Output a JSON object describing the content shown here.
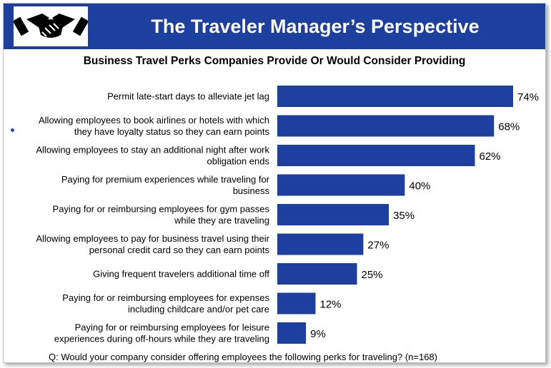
{
  "header": {
    "title": "The Traveler Manager’s Perspective",
    "logo_icon": "handshake-icon"
  },
  "colors": {
    "banner": "#1c3fa0",
    "bar": "#1c3fa0"
  },
  "chart_data": {
    "type": "bar",
    "orientation": "horizontal",
    "title": "Business Travel Perks Companies Provide Or Would Consider Providing",
    "categories": [
      [
        "Permit late-start days to alleviate jet lag"
      ],
      [
        "Allowing employees to book airlines or hotels with which",
        "they have loyalty status so they can earn points"
      ],
      [
        "Allowing employees to stay an additional night after work",
        "obligation ends"
      ],
      [
        "Paying for premium experiences while traveling for",
        "business"
      ],
      [
        "Paying for or reimbursing employees for gym passes",
        "while they are traveling"
      ],
      [
        "Allowing employees to pay for business travel using their",
        "personal credit card so they can earn points"
      ],
      [
        "Giving frequent travelers additional time off"
      ],
      [
        "Paying for or reimbursing employees for expenses",
        "including childcare and/or pet care"
      ],
      [
        "Paying for or reimbursing employees for leisure",
        "experiences during off-hours while they are traveling"
      ]
    ],
    "values": [
      74,
      68,
      62,
      40,
      35,
      27,
      25,
      12,
      9
    ],
    "data_labels": [
      "74%",
      "68%",
      "62%",
      "40%",
      "35%",
      "27%",
      "25%",
      "12%",
      "9%"
    ],
    "value_unit": "%",
    "xlim": [
      0,
      74
    ],
    "grid": false,
    "legend": "none"
  },
  "footnote": "Q: Would your company consider offering employees the following perks for traveling? (n=168)"
}
